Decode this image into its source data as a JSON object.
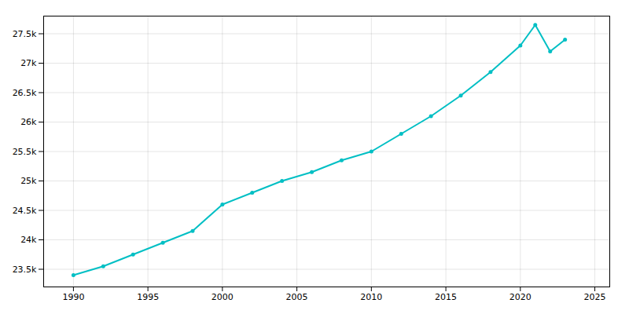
{
  "chart_data": {
    "type": "line",
    "x": [
      1990,
      1992,
      1994,
      1996,
      1998,
      2000,
      2002,
      2004,
      2006,
      2008,
      2010,
      2012,
      2014,
      2016,
      2018,
      2020,
      2021,
      2022,
      2023
    ],
    "values": [
      23400,
      23550,
      23750,
      23950,
      24150,
      24600,
      24800,
      25000,
      25150,
      25350,
      25500,
      25800,
      26100,
      26450,
      26850,
      27300,
      27650,
      27200,
      27400
    ],
    "color": "#00bfc4",
    "marker": "circle",
    "xlim": [
      1988,
      2026
    ],
    "ylim": [
      23200,
      27800
    ],
    "xticks": [
      1990,
      1995,
      2000,
      2005,
      2010,
      2015,
      2020,
      2025
    ],
    "yticks": [
      {
        "value": 23500,
        "label": "23.5k"
      },
      {
        "value": 24000,
        "label": "24k"
      },
      {
        "value": 24500,
        "label": "24.5k"
      },
      {
        "value": 25000,
        "label": "25k"
      },
      {
        "value": 25500,
        "label": "25.5k"
      },
      {
        "value": 26000,
        "label": "26k"
      },
      {
        "value": 26500,
        "label": "26.5k"
      },
      {
        "value": 27000,
        "label": "27k"
      },
      {
        "value": 27500,
        "label": "27.5k"
      }
    ],
    "grid": true
  }
}
